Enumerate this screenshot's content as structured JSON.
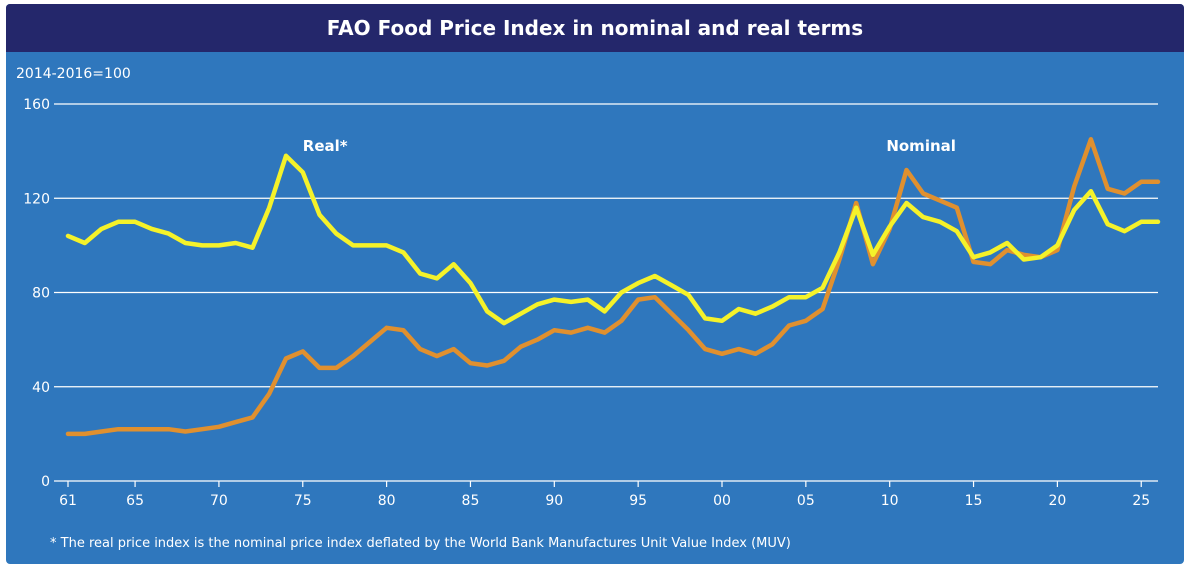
{
  "header": {
    "title": "FAO Food Price Index in nominal and real terms"
  },
  "footnote": "* The real price index is the nominal price index deflated by the World Bank Manufactures Unit Value Index (MUV)",
  "colors": {
    "background": "#2f77bd",
    "title_bar": "#24276b",
    "real": "#f5f22a",
    "nominal": "#e0902f",
    "grid": "#ffffff"
  },
  "chart_data": {
    "type": "line",
    "title": "FAO Food Price Index in nominal and real terms",
    "unit_label": "2014-2016=100",
    "ylim": [
      0,
      160
    ],
    "yticks": [
      0,
      40,
      80,
      120,
      160
    ],
    "xlim": [
      1961,
      2026
    ],
    "xticks": [
      {
        "value": 1961,
        "label": "61"
      },
      {
        "value": 1965,
        "label": "65"
      },
      {
        "value": 1970,
        "label": "70"
      },
      {
        "value": 1975,
        "label": "75"
      },
      {
        "value": 1980,
        "label": "80"
      },
      {
        "value": 1985,
        "label": "85"
      },
      {
        "value": 1990,
        "label": "90"
      },
      {
        "value": 1995,
        "label": "95"
      },
      {
        "value": 2000,
        "label": "00"
      },
      {
        "value": 2005,
        "label": "05"
      },
      {
        "value": 2010,
        "label": "10"
      },
      {
        "value": 2015,
        "label": "15"
      },
      {
        "value": 2020,
        "label": "20"
      },
      {
        "value": 2025,
        "label": "25"
      }
    ],
    "grid": true,
    "x": [
      1961,
      1962,
      1963,
      1964,
      1965,
      1966,
      1967,
      1968,
      1969,
      1970,
      1971,
      1972,
      1973,
      1974,
      1975,
      1976,
      1977,
      1978,
      1979,
      1980,
      1981,
      1982,
      1983,
      1984,
      1985,
      1986,
      1987,
      1988,
      1989,
      1990,
      1991,
      1992,
      1993,
      1994,
      1995,
      1996,
      1997,
      1998,
      1999,
      2000,
      2001,
      2002,
      2003,
      2004,
      2005,
      2006,
      2007,
      2008,
      2009,
      2010,
      2011,
      2012,
      2013,
      2014,
      2015,
      2016,
      2017,
      2018,
      2019,
      2020,
      2021,
      2022,
      2023,
      2024,
      2025,
      2026
    ],
    "series": [
      {
        "name": "Real*",
        "color": "#f5f22a",
        "values": [
          104,
          101,
          107,
          110,
          110,
          107,
          105,
          101,
          100,
          100,
          101,
          99,
          116,
          138,
          131,
          113,
          105,
          100,
          100,
          100,
          97,
          88,
          86,
          92,
          84,
          72,
          67,
          71,
          75,
          77,
          76,
          77,
          72,
          80,
          84,
          87,
          83,
          79,
          69,
          68,
          73,
          71,
          74,
          78,
          78,
          82,
          97,
          116,
          96,
          108,
          118,
          112,
          110,
          106,
          95,
          97,
          101,
          94,
          95,
          100,
          115,
          123,
          109,
          106,
          110,
          110
        ],
        "label_at": [
          1975,
          140
        ]
      },
      {
        "name": "Nominal",
        "color": "#e0902f",
        "values": [
          20,
          20,
          21,
          22,
          22,
          22,
          22,
          21,
          22,
          23,
          25,
          27,
          37,
          52,
          55,
          48,
          48,
          53,
          59,
          65,
          64,
          56,
          53,
          56,
          50,
          49,
          51,
          57,
          60,
          64,
          63,
          65,
          63,
          68,
          77,
          78,
          71,
          64,
          56,
          54,
          56,
          54,
          58,
          66,
          68,
          73,
          94,
          118,
          92,
          107,
          132,
          122,
          119,
          116,
          93,
          92,
          98,
          96,
          95,
          98,
          125,
          145,
          124,
          122,
          127,
          127
        ],
        "label_at": [
          2009.8,
          140
        ]
      }
    ]
  }
}
